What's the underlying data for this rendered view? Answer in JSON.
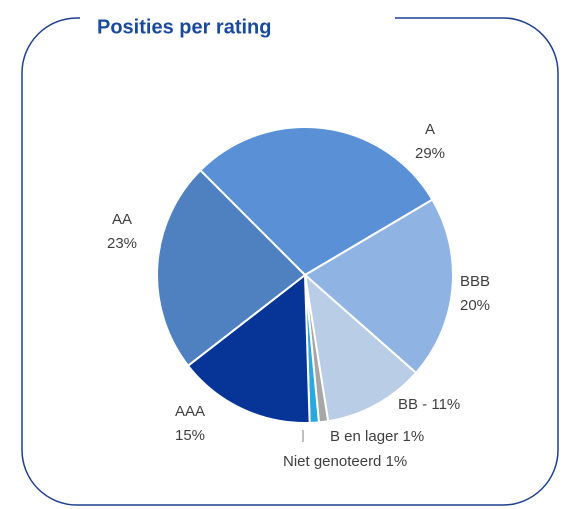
{
  "chart_data": {
    "type": "pie",
    "title": "Posities per rating",
    "values": [
      29,
      20,
      11,
      1,
      1,
      15,
      23
    ],
    "labels": [
      [
        "A",
        "29%"
      ],
      [
        "BBB",
        "20%"
      ],
      [
        "BB - 11%"
      ],
      [
        "B en lager 1%"
      ],
      [
        "Niet genoteerd 1%"
      ],
      [
        "AAA",
        "15%"
      ],
      [
        "AA",
        "23%"
      ]
    ],
    "colors": [
      "#5990d6",
      "#8fb4e3",
      "#b9cde6",
      "#a6a6a6",
      "#2aa7df",
      "#073597",
      "#4f80bf"
    ]
  }
}
